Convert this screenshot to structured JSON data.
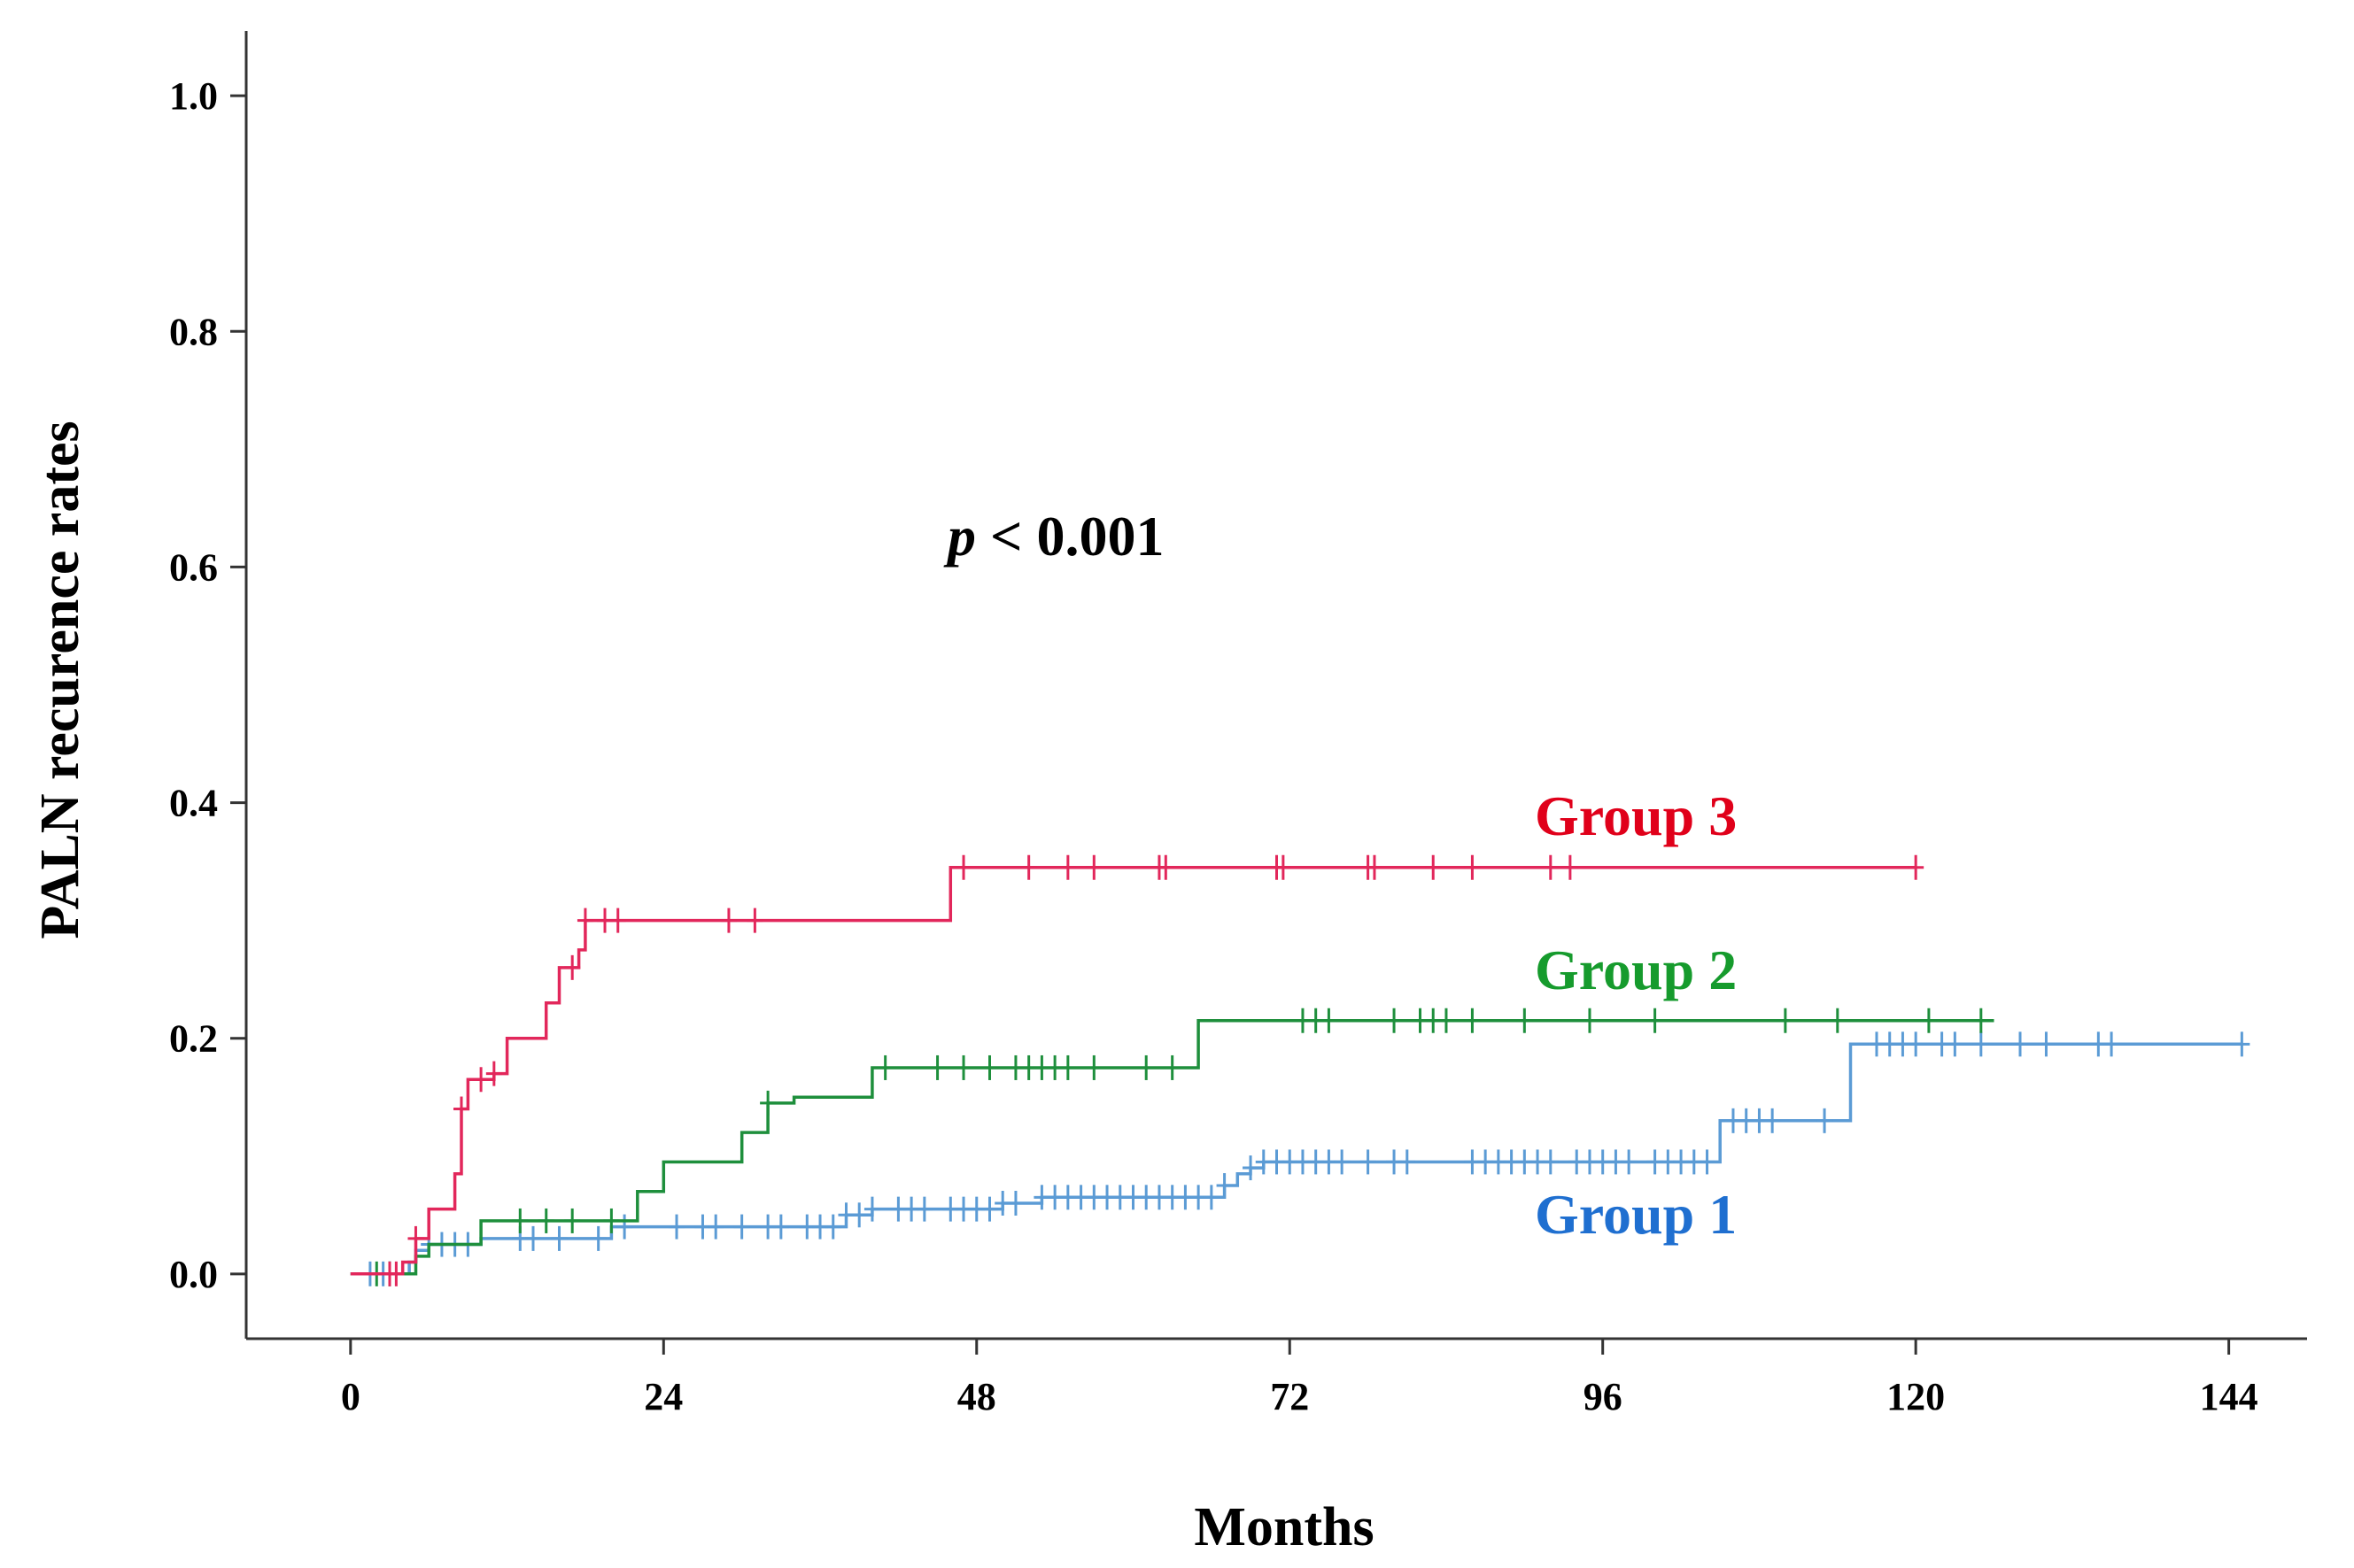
{
  "chart_data": {
    "type": "line",
    "subtype": "kaplan-meier step",
    "title": "",
    "xlabel": "Months",
    "ylabel": "PALN recurence rates",
    "xlim": [
      -8,
      150
    ],
    "ylim": [
      -0.055,
      1.055
    ],
    "xticks": [
      0,
      24,
      48,
      72,
      96,
      120,
      144
    ],
    "yticks": [
      0.0,
      0.2,
      0.4,
      0.6,
      0.8,
      1.0
    ],
    "xtick_labels": [
      "0",
      "24",
      "48",
      "72",
      "96",
      "120",
      "144"
    ],
    "ytick_labels": [
      "0.0",
      "0.2",
      "0.4",
      "0.6",
      "0.8",
      "1.0"
    ],
    "grid": false,
    "annotation": {
      "prefix": "p",
      "text": " < 0.001"
    },
    "series": [
      {
        "name": "Group 1",
        "color": "#5b9bd5",
        "label_color": "#1f6fd0",
        "steps": [
          [
            0,
            0.0
          ],
          [
            4,
            0.0
          ],
          [
            4.5,
            0.01
          ],
          [
            5,
            0.02
          ],
          [
            6,
            0.025
          ],
          [
            10,
            0.03
          ],
          [
            20,
            0.04
          ],
          [
            38,
            0.05
          ],
          [
            40,
            0.055
          ],
          [
            50,
            0.06
          ],
          [
            53,
            0.065
          ],
          [
            67,
            0.075
          ],
          [
            68,
            0.085
          ],
          [
            69,
            0.09
          ],
          [
            70,
            0.095
          ],
          [
            105,
            0.13
          ],
          [
            115,
            0.195
          ],
          [
            145,
            0.195
          ]
        ],
        "censored": [
          1.5,
          2.5,
          3,
          6,
          7,
          8,
          9,
          13,
          14,
          16,
          19,
          21,
          25,
          27,
          28,
          30,
          32,
          33,
          35,
          36,
          37,
          38,
          39,
          40,
          42,
          43,
          44,
          46,
          47,
          48,
          49,
          50,
          51,
          53,
          54,
          55,
          56,
          57,
          58,
          59,
          60,
          61,
          62,
          63,
          64,
          65,
          66,
          67,
          69,
          70,
          71,
          72,
          73,
          74,
          75,
          76,
          78,
          80,
          81,
          86,
          87,
          88,
          89,
          90,
          91,
          92,
          94,
          95,
          96,
          97,
          98,
          100,
          101,
          102,
          103,
          104,
          106,
          107,
          108,
          109,
          113,
          117,
          118,
          119,
          120,
          122,
          123,
          125,
          128,
          130,
          134,
          135,
          145
        ]
      },
      {
        "name": "Group 2",
        "color": "#1e8f3c",
        "label_color": "#169b2d",
        "steps": [
          [
            0,
            0.0
          ],
          [
            4,
            0.0
          ],
          [
            5,
            0.015
          ],
          [
            6,
            0.025
          ],
          [
            10,
            0.045
          ],
          [
            22,
            0.07
          ],
          [
            24,
            0.095
          ],
          [
            30,
            0.12
          ],
          [
            32,
            0.145
          ],
          [
            34,
            0.15
          ],
          [
            40,
            0.175
          ],
          [
            65,
            0.215
          ],
          [
            126,
            0.215
          ]
        ],
        "censored": [
          2,
          3,
          13,
          15,
          17,
          20,
          32,
          41,
          45,
          47,
          49,
          51,
          52,
          53,
          54,
          55,
          57,
          61,
          63,
          73,
          74,
          75,
          80,
          82,
          83,
          84,
          86,
          90,
          95,
          100,
          110,
          114,
          121,
          125
        ]
      },
      {
        "name": "Group 3",
        "color": "#e2275b",
        "label_color": "#e0001a",
        "steps": [
          [
            0,
            0.0
          ],
          [
            3,
            0.0
          ],
          [
            4,
            0.01
          ],
          [
            5,
            0.03
          ],
          [
            6,
            0.055
          ],
          [
            8,
            0.085
          ],
          [
            8.5,
            0.14
          ],
          [
            9,
            0.165
          ],
          [
            11,
            0.17
          ],
          [
            12,
            0.2
          ],
          [
            15,
            0.23
          ],
          [
            16,
            0.26
          ],
          [
            17.5,
            0.275
          ],
          [
            18,
            0.3
          ],
          [
            45,
            0.3
          ],
          [
            46,
            0.345
          ],
          [
            120,
            0.345
          ]
        ],
        "censored": [
          3,
          3.5,
          5,
          8.5,
          10,
          11,
          17,
          18,
          19.5,
          20.5,
          29,
          31,
          47,
          52,
          55,
          57,
          62,
          62.5,
          71,
          71.5,
          78,
          78.5,
          83,
          86,
          92,
          93.5,
          120
        ]
      }
    ]
  }
}
